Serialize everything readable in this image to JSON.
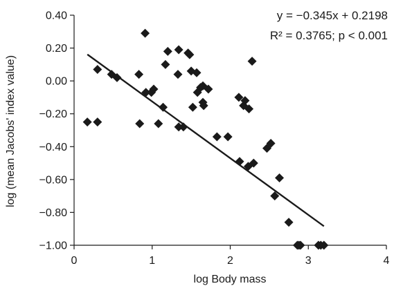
{
  "chart_data": {
    "type": "scatter",
    "xlabel": "log Body mass",
    "ylabel": "log (mean Jacobs' index value)",
    "xlim": [
      0,
      4
    ],
    "ylim": [
      -1.0,
      0.4
    ],
    "x_ticks": [
      0,
      1,
      2,
      3,
      4
    ],
    "y_ticks": [
      -1.0,
      -0.8,
      -0.6,
      -0.4,
      -0.2,
      0.0,
      0.2,
      0.4
    ],
    "x_tick_labels": [
      "0",
      "1",
      "2",
      "3",
      "4"
    ],
    "y_tick_labels": [
      "−1.00",
      "−0.80",
      "−0.60",
      "−0.40",
      "−0.20",
      "0.00",
      "0.20",
      "0.40"
    ],
    "grid": false,
    "marker": "diamond",
    "color": "#1a1a1a",
    "annotation": {
      "equation": "y = −0.345x + 0.2198",
      "r2_p": "R² = 0.3765; p < 0.001"
    },
    "trendline": {
      "slope": -0.345,
      "intercept": 0.2198,
      "x_start": 0.17,
      "x_end": 3.2
    },
    "points": [
      {
        "x": 0.17,
        "y": -0.25
      },
      {
        "x": 0.3,
        "y": -0.25
      },
      {
        "x": 0.3,
        "y": 0.07
      },
      {
        "x": 0.48,
        "y": 0.04
      },
      {
        "x": 0.55,
        "y": 0.02
      },
      {
        "x": 0.83,
        "y": 0.04
      },
      {
        "x": 0.84,
        "y": -0.26
      },
      {
        "x": 0.91,
        "y": 0.29
      },
      {
        "x": 0.92,
        "y": -0.07
      },
      {
        "x": 0.99,
        "y": -0.07
      },
      {
        "x": 1.02,
        "y": -0.05
      },
      {
        "x": 1.08,
        "y": -0.26
      },
      {
        "x": 1.14,
        "y": -0.16
      },
      {
        "x": 1.17,
        "y": 0.1
      },
      {
        "x": 1.2,
        "y": 0.18
      },
      {
        "x": 1.33,
        "y": 0.04
      },
      {
        "x": 1.34,
        "y": 0.19
      },
      {
        "x": 1.34,
        "y": -0.28
      },
      {
        "x": 1.4,
        "y": -0.28
      },
      {
        "x": 1.46,
        "y": 0.17
      },
      {
        "x": 1.48,
        "y": 0.16
      },
      {
        "x": 1.5,
        "y": 0.06
      },
      {
        "x": 1.52,
        "y": -0.16
      },
      {
        "x": 1.57,
        "y": 0.05
      },
      {
        "x": 1.58,
        "y": -0.07
      },
      {
        "x": 1.62,
        "y": -0.04
      },
      {
        "x": 1.65,
        "y": -0.03
      },
      {
        "x": 1.65,
        "y": -0.13
      },
      {
        "x": 1.66,
        "y": -0.15
      },
      {
        "x": 1.72,
        "y": -0.05
      },
      {
        "x": 1.83,
        "y": -0.34
      },
      {
        "x": 1.97,
        "y": -0.34
      },
      {
        "x": 2.11,
        "y": -0.1
      },
      {
        "x": 2.12,
        "y": -0.49
      },
      {
        "x": 2.17,
        "y": -0.15
      },
      {
        "x": 2.19,
        "y": -0.12
      },
      {
        "x": 2.23,
        "y": -0.52
      },
      {
        "x": 2.24,
        "y": -0.17
      },
      {
        "x": 2.28,
        "y": 0.12
      },
      {
        "x": 2.3,
        "y": -0.5
      },
      {
        "x": 2.47,
        "y": -0.41
      },
      {
        "x": 2.52,
        "y": -0.38
      },
      {
        "x": 2.57,
        "y": -0.7
      },
      {
        "x": 2.63,
        "y": -0.59
      },
      {
        "x": 2.75,
        "y": -0.86
      },
      {
        "x": 2.86,
        "y": -1.0
      },
      {
        "x": 2.88,
        "y": -1.0
      },
      {
        "x": 2.9,
        "y": -1.0
      },
      {
        "x": 3.13,
        "y": -1.0
      },
      {
        "x": 3.16,
        "y": -1.0
      },
      {
        "x": 3.2,
        "y": -1.0
      }
    ]
  }
}
